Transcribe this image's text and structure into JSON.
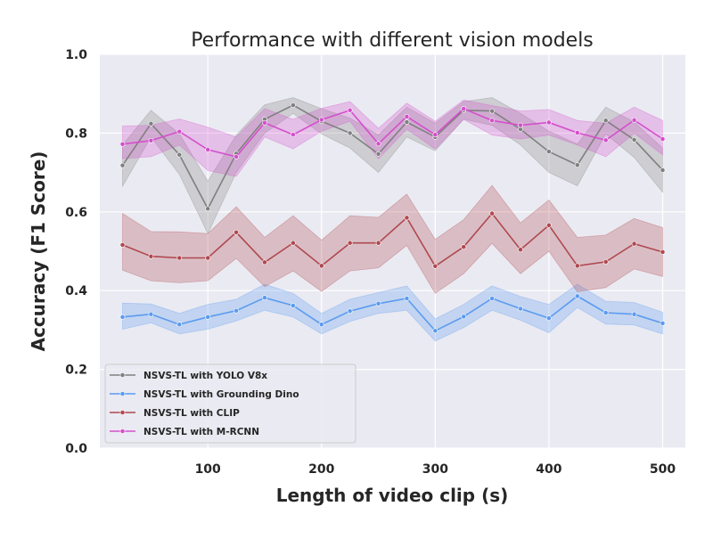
{
  "chart_data": {
    "type": "line",
    "title": "Performance with different vision models",
    "xlabel": "Length of video clip (s)",
    "ylabel": "Accuracy (F1 Score)",
    "xlim": [
      5,
      520
    ],
    "ylim": [
      0.0,
      1.0
    ],
    "xticks": [
      "100",
      "200",
      "300",
      "400",
      "500"
    ],
    "yticks": [
      "0.0",
      "0.2",
      "0.4",
      "0.6",
      "0.8",
      "1.0"
    ],
    "grid": true,
    "legend_position": "lower-left",
    "x": [
      25,
      50,
      75,
      100,
      125,
      150,
      175,
      200,
      225,
      250,
      275,
      300,
      325,
      350,
      375,
      400,
      425,
      450,
      475,
      500
    ],
    "series": [
      {
        "name": "NSVS-TL with YOLO V8x",
        "color": "#808080",
        "values": [
          0.718,
          0.824,
          0.745,
          0.608,
          0.748,
          0.835,
          0.871,
          0.83,
          0.8,
          0.747,
          0.828,
          0.79,
          0.858,
          0.856,
          0.81,
          0.753,
          0.719,
          0.832,
          0.783,
          0.706
        ],
        "lower": [
          0.665,
          0.79,
          0.695,
          0.545,
          0.7,
          0.8,
          0.85,
          0.798,
          0.762,
          0.7,
          0.79,
          0.755,
          0.835,
          0.82,
          0.77,
          0.7,
          0.666,
          0.798,
          0.738,
          0.65
        ],
        "upper": [
          0.77,
          0.858,
          0.798,
          0.678,
          0.795,
          0.872,
          0.89,
          0.862,
          0.838,
          0.795,
          0.866,
          0.825,
          0.88,
          0.89,
          0.85,
          0.805,
          0.772,
          0.866,
          0.828,
          0.762
        ]
      },
      {
        "name": "NSVS-TL with Grounding Dino",
        "color": "#5b9bf0",
        "values": [
          0.333,
          0.34,
          0.314,
          0.333,
          0.349,
          0.382,
          0.362,
          0.314,
          0.348,
          0.367,
          0.38,
          0.298,
          0.334,
          0.38,
          0.354,
          0.33,
          0.386,
          0.344,
          0.34,
          0.317
        ],
        "lower": [
          0.302,
          0.318,
          0.29,
          0.302,
          0.323,
          0.35,
          0.333,
          0.29,
          0.322,
          0.342,
          0.35,
          0.272,
          0.306,
          0.35,
          0.325,
          0.293,
          0.357,
          0.315,
          0.313,
          0.29
        ],
        "upper": [
          0.368,
          0.366,
          0.342,
          0.365,
          0.378,
          0.416,
          0.393,
          0.342,
          0.378,
          0.395,
          0.412,
          0.328,
          0.365,
          0.412,
          0.385,
          0.365,
          0.416,
          0.373,
          0.37,
          0.345
        ]
      },
      {
        "name": "NSVS-TL with CLIP",
        "color": "#b04850",
        "values": [
          0.516,
          0.487,
          0.483,
          0.483,
          0.548,
          0.472,
          0.521,
          0.463,
          0.521,
          0.521,
          0.585,
          0.462,
          0.511,
          0.596,
          0.504,
          0.566,
          0.463,
          0.473,
          0.519,
          0.498
        ],
        "lower": [
          0.452,
          0.425,
          0.42,
          0.425,
          0.482,
          0.41,
          0.45,
          0.398,
          0.45,
          0.458,
          0.515,
          0.393,
          0.443,
          0.52,
          0.443,
          0.5,
          0.397,
          0.408,
          0.455,
          0.436
        ],
        "upper": [
          0.596,
          0.55,
          0.549,
          0.545,
          0.613,
          0.535,
          0.59,
          0.528,
          0.59,
          0.586,
          0.645,
          0.53,
          0.58,
          0.667,
          0.572,
          0.63,
          0.535,
          0.541,
          0.583,
          0.56
        ]
      },
      {
        "name": "NSVS-TL with M-RCNN",
        "color": "#d44fcc",
        "values": [
          0.772,
          0.781,
          0.804,
          0.758,
          0.74,
          0.826,
          0.796,
          0.834,
          0.858,
          0.773,
          0.842,
          0.796,
          0.862,
          0.832,
          0.82,
          0.827,
          0.801,
          0.782,
          0.833,
          0.785
        ],
        "lower": [
          0.735,
          0.74,
          0.77,
          0.705,
          0.69,
          0.79,
          0.76,
          0.805,
          0.83,
          0.735,
          0.81,
          0.76,
          0.835,
          0.795,
          0.785,
          0.795,
          0.77,
          0.74,
          0.8,
          0.745
        ],
        "upper": [
          0.818,
          0.82,
          0.836,
          0.815,
          0.79,
          0.862,
          0.835,
          0.863,
          0.88,
          0.812,
          0.876,
          0.83,
          0.884,
          0.87,
          0.856,
          0.86,
          0.832,
          0.825,
          0.866,
          0.832
        ]
      }
    ]
  }
}
